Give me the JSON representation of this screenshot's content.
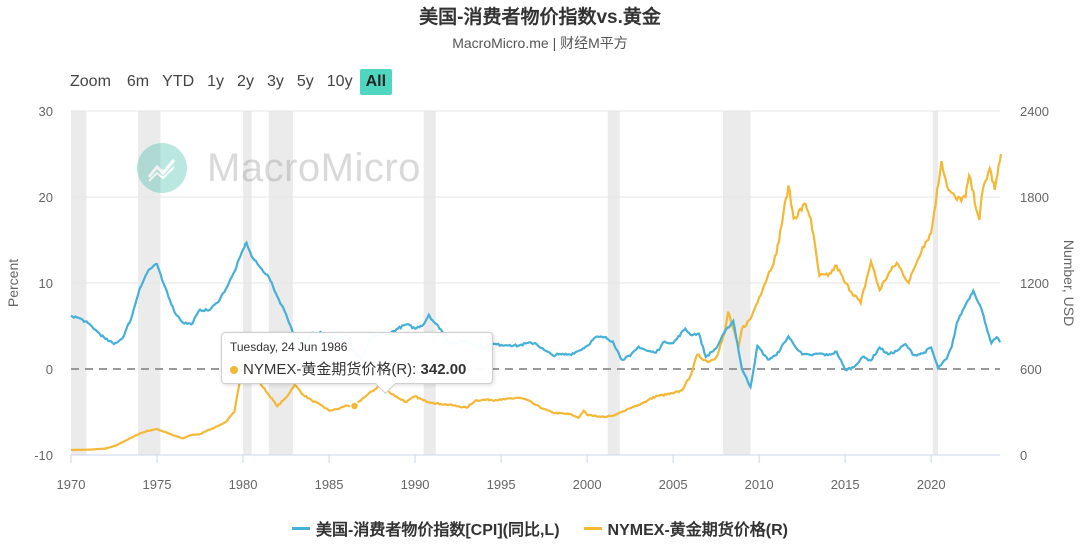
{
  "header": {
    "title": "美国-消费者物价指数vs.黄金",
    "subtitle": "MacroMicro.me | 财经M平方"
  },
  "zoom": {
    "label": "Zoom",
    "buttons": [
      "6m",
      "YTD",
      "1y",
      "2y",
      "3y",
      "5y",
      "10y",
      "All"
    ],
    "active": "All"
  },
  "watermark": {
    "text": "MacroMicro"
  },
  "tooltip": {
    "date": "Tuesday, 24 Jun 1986",
    "series": "NYMEX-黄金期货价格(R):",
    "value": "342.00"
  },
  "colors": {
    "cpi": "#45b0d8",
    "gold": "#f3b835",
    "recession": "#ebebeb",
    "accent": "#4fd6c1"
  },
  "chart_data": {
    "type": "line",
    "left_axis": {
      "title": "Percent",
      "range": [
        -10,
        30
      ],
      "ticks": [
        -10,
        0,
        10,
        20,
        30
      ]
    },
    "right_axis": {
      "title": "Number, USD",
      "range": [
        0,
        2400
      ],
      "ticks": [
        0,
        600,
        1200,
        1800,
        2400
      ]
    },
    "x_axis": {
      "range": [
        1970,
        2024
      ],
      "ticks": [
        1970,
        1975,
        1980,
        1985,
        1990,
        1995,
        2000,
        2005,
        2010,
        2015,
        2020
      ]
    },
    "recessions": [
      [
        1970.0,
        1970.9
      ],
      [
        1973.9,
        1975.2
      ],
      [
        1980.0,
        1980.5
      ],
      [
        1981.5,
        1982.9
      ],
      [
        1990.5,
        1991.2
      ],
      [
        2001.2,
        2001.9
      ],
      [
        2007.9,
        2009.5
      ],
      [
        2020.1,
        2020.4
      ]
    ],
    "series": [
      {
        "name": "美国-消费者物价指数[CPI](同比,L)",
        "axis": "left",
        "points": [
          [
            1970.0,
            6.2
          ],
          [
            1970.5,
            5.9
          ],
          [
            1971.0,
            5.3
          ],
          [
            1971.5,
            4.4
          ],
          [
            1972.0,
            3.5
          ],
          [
            1972.5,
            2.9
          ],
          [
            1973.0,
            3.6
          ],
          [
            1973.5,
            5.9
          ],
          [
            1974.0,
            9.4
          ],
          [
            1974.5,
            11.5
          ],
          [
            1975.0,
            12.2
          ],
          [
            1975.3,
            10.3
          ],
          [
            1975.5,
            9.4
          ],
          [
            1976.0,
            6.7
          ],
          [
            1976.5,
            5.4
          ],
          [
            1977.0,
            5.2
          ],
          [
            1977.5,
            6.9
          ],
          [
            1978.0,
            6.8
          ],
          [
            1978.5,
            7.7
          ],
          [
            1979.0,
            9.3
          ],
          [
            1979.5,
            11.3
          ],
          [
            1980.0,
            13.9
          ],
          [
            1980.2,
            14.7
          ],
          [
            1980.5,
            13.1
          ],
          [
            1981.0,
            11.8
          ],
          [
            1981.5,
            10.7
          ],
          [
            1982.0,
            8.4
          ],
          [
            1982.5,
            6.4
          ],
          [
            1983.0,
            3.7
          ],
          [
            1983.5,
            2.5
          ],
          [
            1984.0,
            4.2
          ],
          [
            1984.5,
            4.3
          ],
          [
            1985.0,
            3.5
          ],
          [
            1985.5,
            3.6
          ],
          [
            1986.0,
            3.9
          ],
          [
            1986.5,
            1.7
          ],
          [
            1986.9,
            1.2
          ],
          [
            1987.5,
            3.8
          ],
          [
            1988.0,
            4.0
          ],
          [
            1988.5,
            4.1
          ],
          [
            1989.0,
            4.7
          ],
          [
            1989.5,
            5.2
          ],
          [
            1990.0,
            4.7
          ],
          [
            1990.5,
            5.2
          ],
          [
            1990.8,
            6.3
          ],
          [
            1991.0,
            5.7
          ],
          [
            1991.5,
            4.6
          ],
          [
            1992.0,
            3.0
          ],
          [
            1992.5,
            3.1
          ],
          [
            1993.0,
            3.3
          ],
          [
            1993.5,
            2.8
          ],
          [
            1994.0,
            2.5
          ],
          [
            1994.5,
            2.9
          ],
          [
            1995.0,
            2.8
          ],
          [
            1995.5,
            2.8
          ],
          [
            1996.0,
            2.7
          ],
          [
            1996.5,
            3.0
          ],
          [
            1997.0,
            3.0
          ],
          [
            1997.5,
            2.2
          ],
          [
            1998.0,
            1.6
          ],
          [
            1998.5,
            1.7
          ],
          [
            1999.0,
            1.7
          ],
          [
            1999.5,
            2.1
          ],
          [
            2000.0,
            2.7
          ],
          [
            2000.5,
            3.7
          ],
          [
            2001.0,
            3.7
          ],
          [
            2001.5,
            3.2
          ],
          [
            2002.0,
            1.1
          ],
          [
            2002.5,
            1.5
          ],
          [
            2003.0,
            2.6
          ],
          [
            2003.5,
            2.1
          ],
          [
            2004.0,
            1.9
          ],
          [
            2004.5,
            3.2
          ],
          [
            2005.0,
            3.0
          ],
          [
            2005.7,
            4.7
          ],
          [
            2006.0,
            4.0
          ],
          [
            2006.5,
            4.1
          ],
          [
            2006.9,
            1.4
          ],
          [
            2007.5,
            2.4
          ],
          [
            2008.0,
            4.3
          ],
          [
            2008.5,
            5.6
          ],
          [
            2008.9,
            1.1
          ],
          [
            2009.0,
            0.0
          ],
          [
            2009.5,
            -2.1
          ],
          [
            2009.9,
            2.7
          ],
          [
            2010.5,
            1.1
          ],
          [
            2011.0,
            1.6
          ],
          [
            2011.7,
            3.8
          ],
          [
            2012.0,
            2.9
          ],
          [
            2012.5,
            1.7
          ],
          [
            2013.0,
            1.6
          ],
          [
            2013.5,
            1.8
          ],
          [
            2014.0,
            1.6
          ],
          [
            2014.5,
            2.0
          ],
          [
            2015.0,
            -0.1
          ],
          [
            2015.5,
            0.2
          ],
          [
            2016.0,
            1.4
          ],
          [
            2016.5,
            1.0
          ],
          [
            2017.0,
            2.5
          ],
          [
            2017.5,
            1.7
          ],
          [
            2018.0,
            2.1
          ],
          [
            2018.5,
            2.9
          ],
          [
            2019.0,
            1.6
          ],
          [
            2019.5,
            1.8
          ],
          [
            2020.0,
            2.5
          ],
          [
            2020.4,
            0.1
          ],
          [
            2020.9,
            1.2
          ],
          [
            2021.2,
            2.6
          ],
          [
            2021.5,
            5.4
          ],
          [
            2022.0,
            7.5
          ],
          [
            2022.45,
            9.1
          ],
          [
            2022.9,
            7.1
          ],
          [
            2023.2,
            5.0
          ],
          [
            2023.5,
            3.0
          ],
          [
            2023.8,
            3.7
          ],
          [
            2024.0,
            3.1
          ]
        ]
      },
      {
        "name": "NYMEX-黄金期货价格(R)",
        "axis": "right",
        "points": [
          [
            1970.0,
            35
          ],
          [
            1971.0,
            37
          ],
          [
            1972.0,
            45
          ],
          [
            1972.6,
            65
          ],
          [
            1973.0,
            90
          ],
          [
            1973.5,
            120
          ],
          [
            1974.0,
            150
          ],
          [
            1974.5,
            170
          ],
          [
            1975.0,
            180
          ],
          [
            1975.5,
            160
          ],
          [
            1976.0,
            135
          ],
          [
            1976.5,
            115
          ],
          [
            1977.0,
            140
          ],
          [
            1977.5,
            145
          ],
          [
            1978.0,
            175
          ],
          [
            1978.5,
            200
          ],
          [
            1979.0,
            230
          ],
          [
            1979.5,
            300
          ],
          [
            1980.0,
            650
          ],
          [
            1980.1,
            620
          ],
          [
            1980.5,
            580
          ],
          [
            1981.0,
            500
          ],
          [
            1981.5,
            420
          ],
          [
            1982.0,
            340
          ],
          [
            1982.5,
            400
          ],
          [
            1983.0,
            490
          ],
          [
            1983.5,
            420
          ],
          [
            1984.0,
            380
          ],
          [
            1984.5,
            350
          ],
          [
            1985.0,
            310
          ],
          [
            1985.5,
            320
          ],
          [
            1986.0,
            345
          ],
          [
            1986.5,
            342
          ],
          [
            1987.0,
            400
          ],
          [
            1987.9,
            480
          ],
          [
            1988.5,
            440
          ],
          [
            1989.0,
            400
          ],
          [
            1989.5,
            370
          ],
          [
            1990.0,
            410
          ],
          [
            1990.5,
            380
          ],
          [
            1991.0,
            365
          ],
          [
            1991.5,
            355
          ],
          [
            1992.0,
            350
          ],
          [
            1992.5,
            340
          ],
          [
            1993.0,
            330
          ],
          [
            1993.5,
            380
          ],
          [
            1994.0,
            385
          ],
          [
            1995.0,
            385
          ],
          [
            1996.0,
            400
          ],
          [
            1996.5,
            385
          ],
          [
            1997.0,
            350
          ],
          [
            1997.5,
            320
          ],
          [
            1998.0,
            295
          ],
          [
            1999.0,
            285
          ],
          [
            1999.5,
            260
          ],
          [
            1999.8,
            310
          ],
          [
            2000.0,
            280
          ],
          [
            2001.0,
            265
          ],
          [
            2001.5,
            275
          ],
          [
            2002.0,
            300
          ],
          [
            2003.0,
            350
          ],
          [
            2004.0,
            410
          ],
          [
            2005.0,
            430
          ],
          [
            2005.5,
            450
          ],
          [
            2006.0,
            550
          ],
          [
            2006.4,
            700
          ],
          [
            2007.0,
            650
          ],
          [
            2007.5,
            680
          ],
          [
            2008.0,
            850
          ],
          [
            2008.2,
            1000
          ],
          [
            2008.8,
            750
          ],
          [
            2009.0,
            880
          ],
          [
            2009.5,
            950
          ],
          [
            2010.0,
            1100
          ],
          [
            2010.5,
            1250
          ],
          [
            2011.0,
            1400
          ],
          [
            2011.7,
            1880
          ],
          [
            2012.0,
            1650
          ],
          [
            2012.7,
            1750
          ],
          [
            2013.0,
            1650
          ],
          [
            2013.5,
            1250
          ],
          [
            2014.0,
            1250
          ],
          [
            2014.5,
            1320
          ],
          [
            2015.0,
            1200
          ],
          [
            2015.9,
            1060
          ],
          [
            2016.5,
            1350
          ],
          [
            2017.0,
            1150
          ],
          [
            2017.5,
            1260
          ],
          [
            2018.0,
            1340
          ],
          [
            2018.7,
            1200
          ],
          [
            2019.0,
            1300
          ],
          [
            2019.5,
            1450
          ],
          [
            2020.0,
            1550
          ],
          [
            2020.6,
            2050
          ],
          [
            2021.0,
            1850
          ],
          [
            2021.5,
            1780
          ],
          [
            2022.0,
            1800
          ],
          [
            2022.2,
            1950
          ],
          [
            2022.8,
            1640
          ],
          [
            2023.0,
            1850
          ],
          [
            2023.4,
            2000
          ],
          [
            2023.7,
            1850
          ],
          [
            2024.0,
            2050
          ],
          [
            2024.05,
            2100
          ]
        ]
      }
    ]
  }
}
